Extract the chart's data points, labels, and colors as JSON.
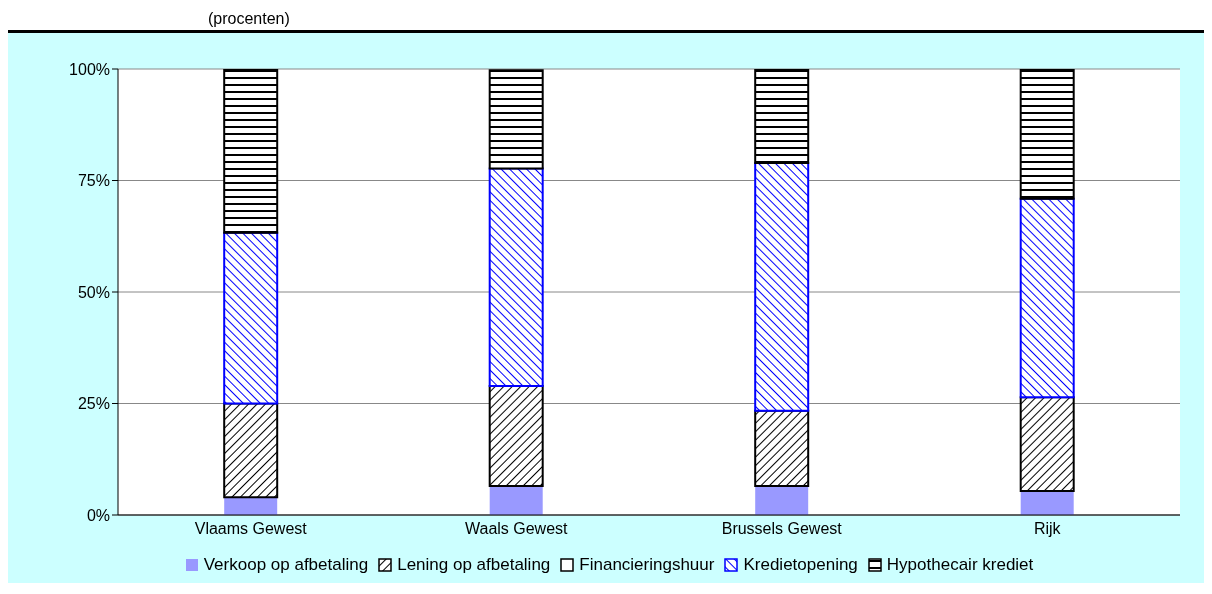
{
  "chart_data": {
    "type": "bar",
    "title": "(procenten)",
    "stacked": true,
    "categories": [
      "Vlaams Gewest",
      "Waals Gewest",
      "Brussels Gewest",
      "Rijk"
    ],
    "series": [
      {
        "name": "Verkoop op afbetaling",
        "color": "#9999ff",
        "values": [
          4.0,
          6.5,
          6.5,
          5.4
        ]
      },
      {
        "name": "Lening op afbetaling",
        "color": "#000000",
        "values": [
          21.0,
          22.4,
          16.9,
          21.0
        ]
      },
      {
        "name": "Financieringshuur",
        "color": "#ffffff",
        "values": [
          null,
          null,
          null,
          null
        ]
      },
      {
        "name": "Kredietopening",
        "color": "#0000ff",
        "values": [
          38.3,
          48.8,
          55.5,
          44.5
        ]
      },
      {
        "name": "Hypothecair krediet",
        "color": "#000000",
        "values": [
          36.5,
          22.0,
          21.0,
          28.9
        ]
      }
    ],
    "ylim": [
      0,
      100
    ],
    "yticks": [
      {
        "value": 0,
        "label": "0%"
      },
      {
        "value": 25,
        "label": "25%"
      },
      {
        "value": 50,
        "label": "50%"
      },
      {
        "value": 75,
        "label": "75%"
      },
      {
        "value": 100,
        "label": "100%"
      }
    ],
    "grid": "y",
    "legend": "bottom"
  }
}
